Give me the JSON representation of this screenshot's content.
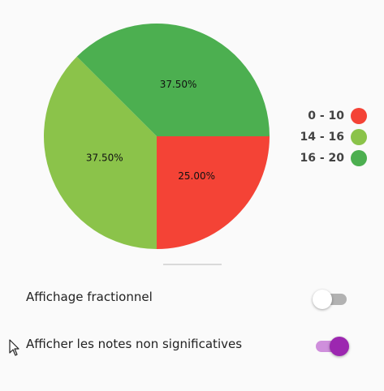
{
  "chart_data": {
    "type": "pie",
    "slices": [
      {
        "label": "0 - 10",
        "value": 25.0,
        "display": "25.00%",
        "color": "#f44336"
      },
      {
        "label": "14 - 16",
        "value": 37.5,
        "display": "37.50%",
        "color": "#8bc34a"
      },
      {
        "label": "16 - 20",
        "value": 37.5,
        "display": "37.50%",
        "color": "#4caf50"
      }
    ],
    "legend_position": "right"
  },
  "settings": {
    "fractional": {
      "label": "Affichage fractionnel",
      "enabled": false
    },
    "non_significant": {
      "label": "Afficher les notes non significatives",
      "enabled": true
    }
  },
  "colors": {
    "switch_on_thumb": "#9c27b0",
    "switch_on_track": "#cf8fdc",
    "switch_off_thumb": "#ffffff",
    "switch_off_track": "#b2b2b2"
  }
}
